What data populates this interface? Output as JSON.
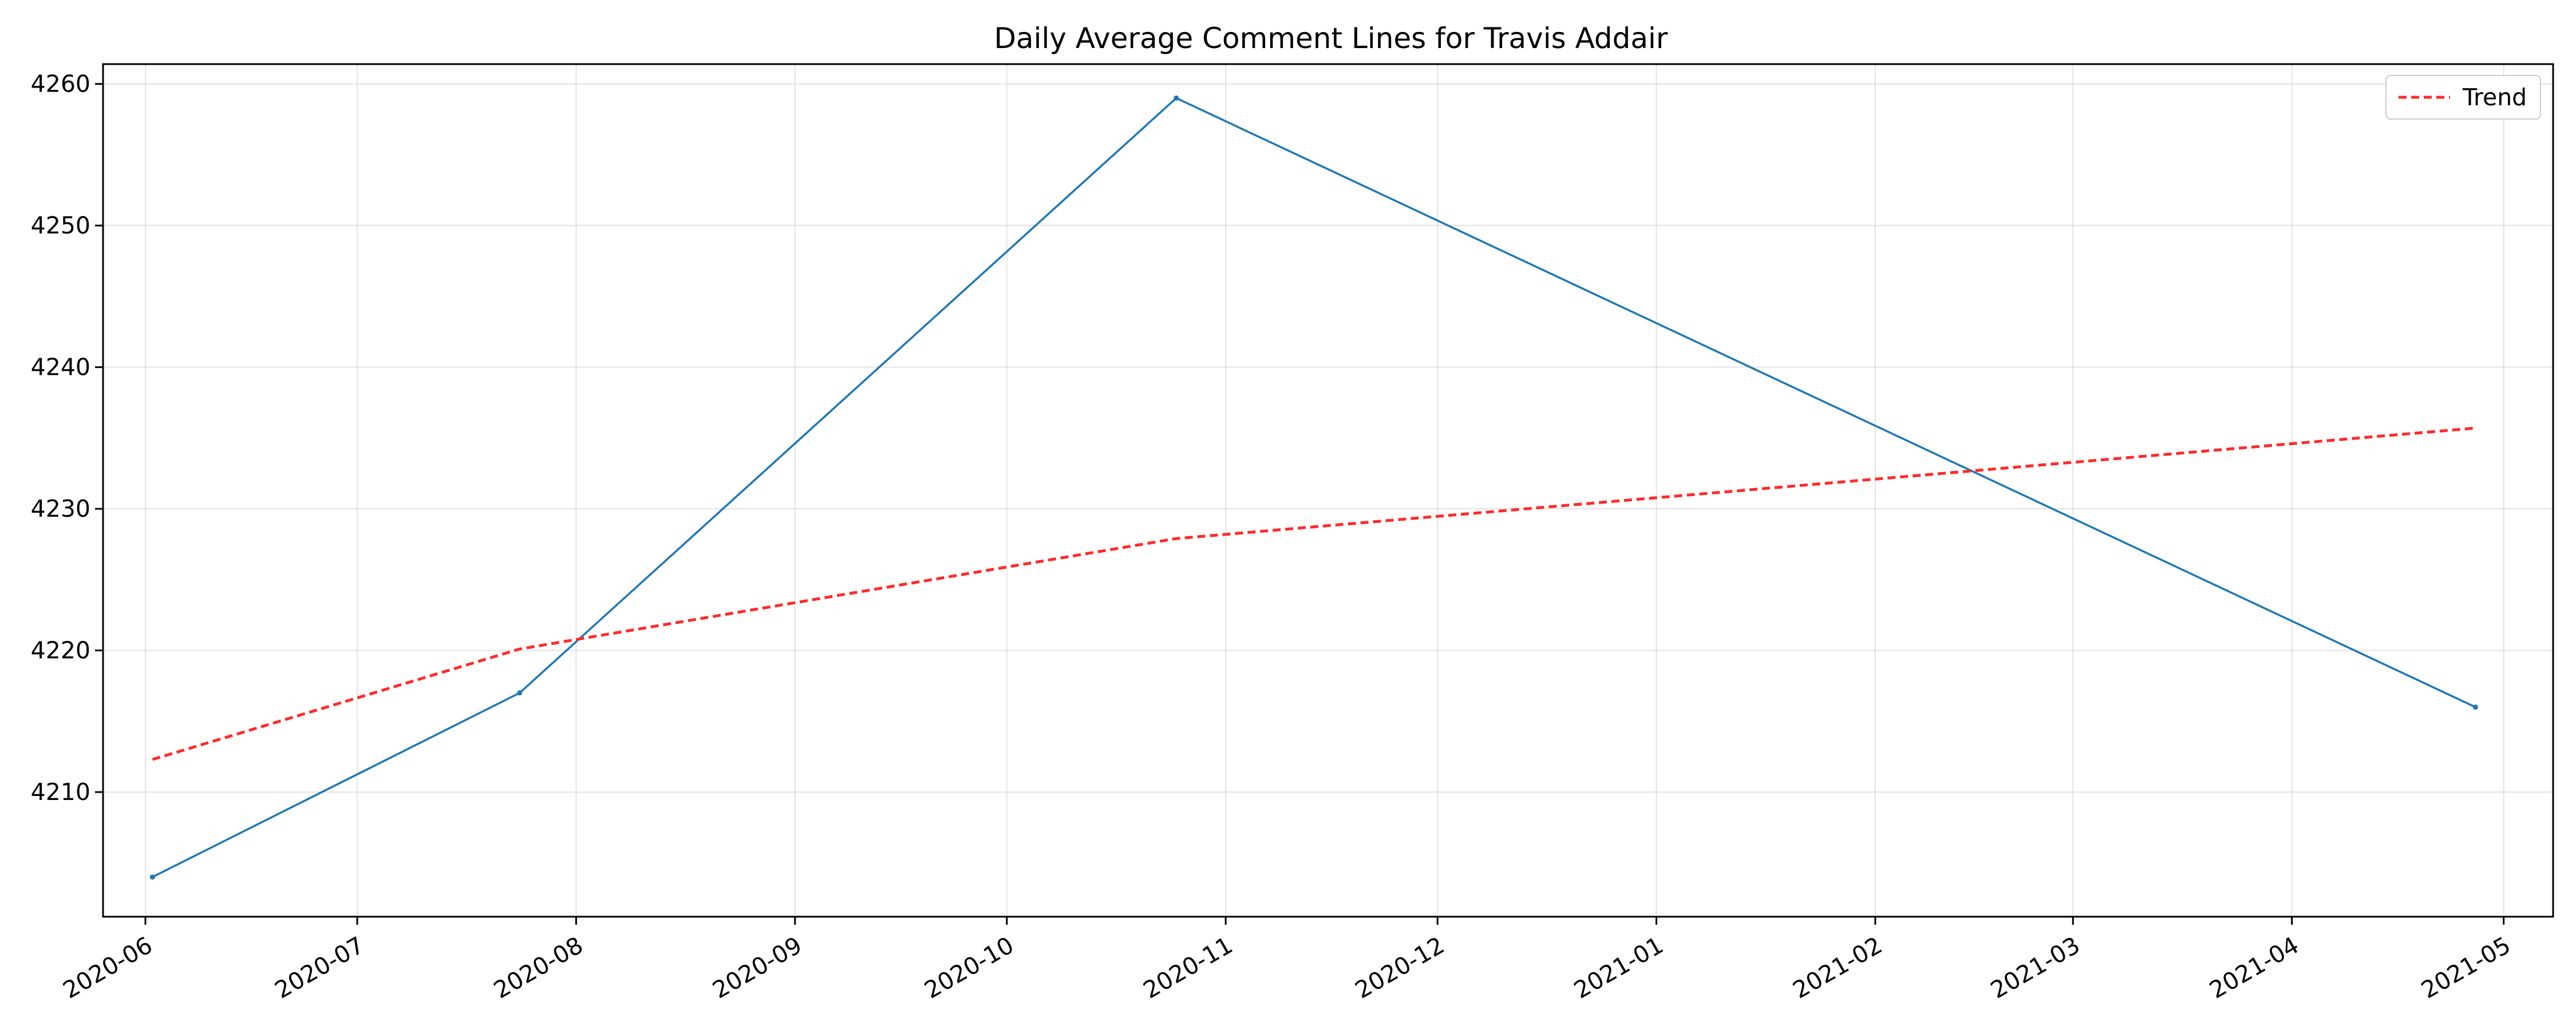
{
  "chart_data": {
    "type": "line",
    "title": "Daily Average Comment Lines for Travis Addair",
    "xlabel": "",
    "ylabel": "",
    "x_ticks": [
      "2020-06",
      "2020-07",
      "2020-08",
      "2020-09",
      "2020-10",
      "2020-11",
      "2020-12",
      "2021-01",
      "2021-02",
      "2021-03",
      "2021-04",
      "2021-05"
    ],
    "y_ticks": [
      4210,
      4220,
      4230,
      4240,
      4250,
      4260
    ],
    "xlim": [
      "2020-05-26",
      "2021-05-08"
    ],
    "ylim": [
      4201.2,
      4261.4
    ],
    "grid": true,
    "legend_position": "top-right",
    "series": [
      {
        "color": "#1f77b4",
        "style": "solid",
        "x": [
          "2020-06-02",
          "2020-07-24",
          "2020-10-25",
          "2021-04-27"
        ],
        "y": [
          4204,
          4217,
          4259,
          4216
        ]
      },
      {
        "name": "Trend",
        "color": "#ff2a2a",
        "style": "dashed",
        "x": [
          "2020-06-02",
          "2020-07-24",
          "2020-10-25",
          "2021-04-27"
        ],
        "y": [
          4212.3,
          4220.1,
          4227.9,
          4235.7
        ]
      }
    ]
  }
}
